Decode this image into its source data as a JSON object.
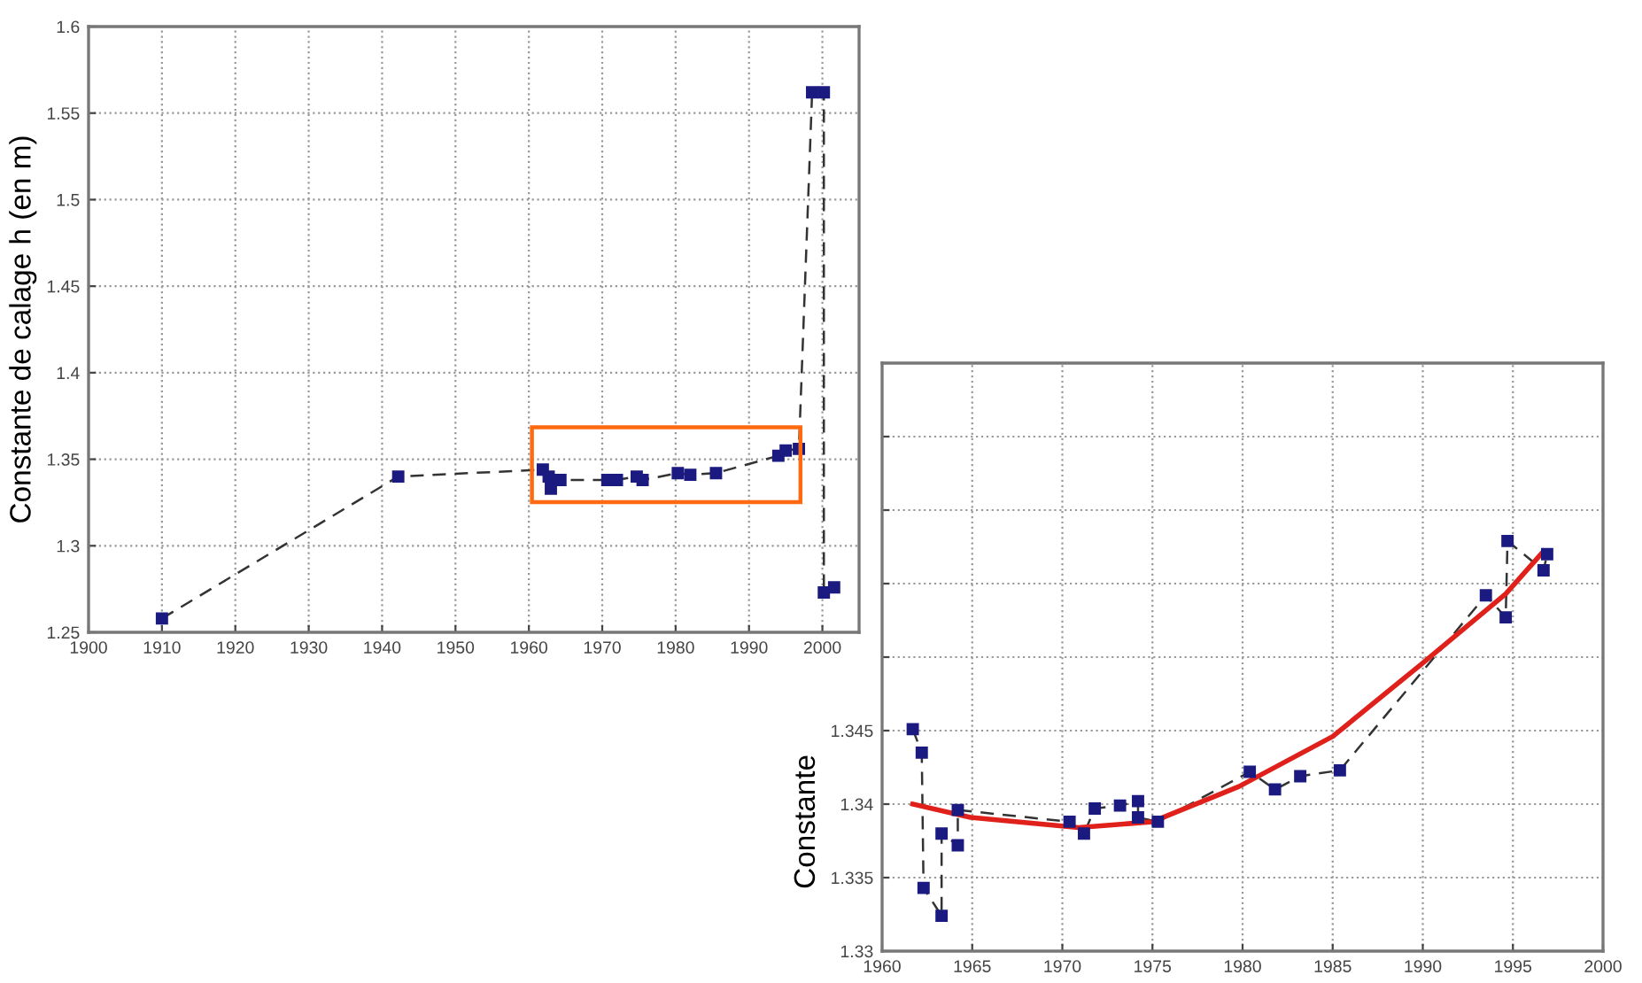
{
  "chart_data": [
    {
      "type": "line",
      "ylabel": "Constante de calage h (en m)",
      "xlim": [
        1900,
        2005
      ],
      "xticks": [
        1900,
        1910,
        1920,
        1930,
        1940,
        1950,
        1960,
        1970,
        1980,
        1990,
        2000
      ],
      "ylim": [
        1.25,
        1.6
      ],
      "yticks": [
        1.25,
        1.3,
        1.35,
        1.4,
        1.45,
        1.5,
        1.55,
        1.6
      ],
      "grid": true,
      "series": [
        {
          "color": "#1a1a80",
          "marker": "square",
          "line_style": "dashed",
          "x": [
            1910,
            1942.2,
            1961.9,
            1962.7,
            1963,
            1964.3,
            1970.7,
            1972,
            1974.7,
            1975.5,
            1980.3,
            1982,
            1985.5,
            1994,
            1995,
            1996.8,
            1998.6,
            2000.2,
            2000.2,
            2001.6
          ],
          "values": [
            1.258,
            1.34,
            1.344,
            1.34,
            1.333,
            1.338,
            1.338,
            1.338,
            1.34,
            1.338,
            1.342,
            1.341,
            1.342,
            1.352,
            1.355,
            1.356,
            1.562,
            1.562,
            1.273,
            1.276
          ]
        }
      ]
    },
    {
      "type": "line",
      "ylabel": "Constante",
      "xlim": [
        1960,
        2000
      ],
      "xticks": [
        1960,
        1965,
        1970,
        1975,
        1980,
        1985,
        1990,
        1995,
        2000
      ],
      "ylim": [
        1.33,
        1.37
      ],
      "yticks": [
        1.33,
        1.335,
        1.34,
        1.345,
        {
          "value": 1.35,
          "label": null
        },
        {
          "value": 1.355,
          "label": null
        },
        {
          "value": 1.36,
          "label": null
        },
        {
          "value": 1.365,
          "label": null
        },
        {
          "value": 1.37,
          "label": null
        }
      ],
      "grid": true,
      "series": [
        {
          "color": "#1a1a80",
          "marker": "square",
          "line_style": "dashed",
          "x": [
            1961.7,
            1962.2,
            1962.3,
            1963.3,
            1963.3,
            1964.2,
            1964.2,
            1970.4,
            1971.2,
            1971.8,
            1973.2,
            1974.2,
            1974.2,
            1975.3,
            1980.4,
            1981.8,
            1983.2,
            1985.4,
            1993.5,
            1994.6,
            1994.7,
            1996.7,
            1996.9
          ],
          "values": [
            1.3451,
            1.3435,
            1.3343,
            1.3324,
            1.338,
            1.3372,
            1.3396,
            1.3388,
            1.338,
            1.3397,
            1.3399,
            1.3402,
            1.3391,
            1.3388,
            1.3422,
            1.341,
            1.3419,
            1.3423,
            1.3542,
            1.3527,
            1.3579,
            1.3559,
            1.357
          ]
        },
        {
          "color": "#e0201a",
          "marker": "none",
          "line_style": "solid",
          "x": [
            1961.7,
            1964.9,
            1970.9,
            1975,
            1979.8,
            1985,
            1989.9,
            1994.6,
            1996.7
          ],
          "values": [
            1.34,
            1.3391,
            1.3384,
            1.3388,
            1.3412,
            1.3446,
            1.3495,
            1.3543,
            1.3572
          ]
        }
      ]
    }
  ]
}
